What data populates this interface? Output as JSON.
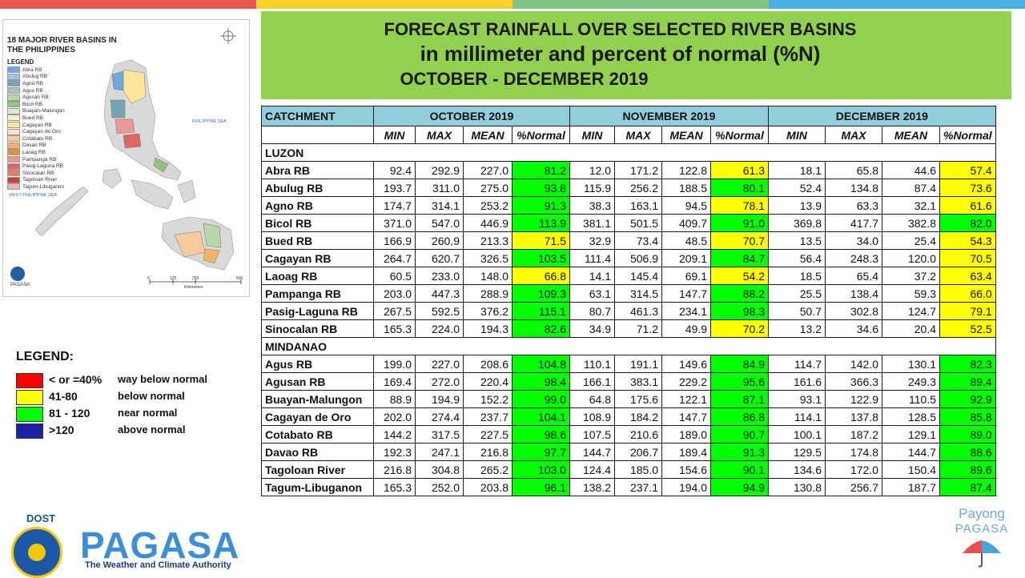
{
  "colors": {
    "top_bar": [
      "#e8574f",
      "#f5d32a",
      "#7fc380",
      "#49b2e2"
    ],
    "title_bg": "#92d050",
    "header_bg": "#92cddc",
    "red": "#ff0000",
    "yellow": "#ffff00",
    "green": "#00ff00",
    "blue": "#1f1fa6"
  },
  "title": {
    "line1": "FORECAST RAINFALL OVER SELECTED RIVER BASINS",
    "line2": "in millimeter  and percent of normal (%N)",
    "line3": "OCTOBER  - DECEMBER 2019"
  },
  "map": {
    "title": "18 MAJOR RIVER BASINS IN THE PHILIPPINES",
    "legend_title": "LEGEND",
    "legend_items": [
      {
        "label": "Abra RB",
        "color": "#6fa8dc"
      },
      {
        "label": "Abulug RB",
        "color": "#9fc5e8"
      },
      {
        "label": "Agno RB",
        "color": "#76a5af"
      },
      {
        "label": "Agus RB",
        "color": "#a2c4c9"
      },
      {
        "label": "Agusan RB",
        "color": "#b6d7a8"
      },
      {
        "label": "Bicol RB",
        "color": "#93c47d"
      },
      {
        "label": "Buayan-Malungon",
        "color": "#d9ead3"
      },
      {
        "label": "Bued RB",
        "color": "#fff2cc"
      },
      {
        "label": "Cagayan RB",
        "color": "#ffe599"
      },
      {
        "label": "Cagayan de Oro",
        "color": "#fce5cd"
      },
      {
        "label": "Cotabato RB",
        "color": "#f9cb9c"
      },
      {
        "label": "Davao RB",
        "color": "#f6b26b"
      },
      {
        "label": "Laoag RB",
        "color": "#e69138"
      },
      {
        "label": "Pampanga RB",
        "color": "#ea9999"
      },
      {
        "label": "Pasig-Laguna RB",
        "color": "#e06666"
      },
      {
        "label": "Sinocalan RB",
        "color": "#dd7e6b"
      },
      {
        "label": "Tagoloan River",
        "color": "#cc4125"
      },
      {
        "label": "Tagum-Libuganon",
        "color": "#e6b8af"
      }
    ],
    "east_sea": "PHILIPPINE SEA",
    "west_sea": "WEST PHILIPPINE SEA",
    "scale": [
      "0",
      "125",
      "250",
      "500"
    ],
    "scale_unit": "Kilometers",
    "agency": "PAGASA"
  },
  "legend": {
    "title": "LEGEND:",
    "items": [
      {
        "range": "< or =40%",
        "desc": "way below normal",
        "color": "#ff0000"
      },
      {
        "range": "41-80",
        "desc": "below normal",
        "color": "#ffff00"
      },
      {
        "range": "81 - 120",
        "desc": "near normal",
        "color": "#00ff00"
      },
      {
        "range": ">120",
        "desc": "above normal",
        "color": "#1f1fa6"
      }
    ]
  },
  "table": {
    "catchment_label": "CATCHMENT",
    "months": [
      "OCTOBER 2019",
      "NOVEMBER 2019",
      "DECEMBER 2019"
    ],
    "subheaders": [
      "MIN",
      "MAX",
      "MEAN",
      "%Normal"
    ],
    "regions": [
      {
        "name": "LUZON",
        "rows": [
          {
            "name": "Abra RB",
            "values": [
              "92.4",
              "292.9",
              "227.0",
              "81.2",
              "12.0",
              "171.2",
              "122.8",
              "61.3",
              "18.1",
              "65.8",
              "44.6",
              "57.4"
            ],
            "cls": [
              "g",
              "y",
              "y"
            ]
          },
          {
            "name": "Abulug RB",
            "values": [
              "193.7",
              "311.0",
              "275.0",
              "93.8",
              "115.9",
              "256.2",
              "188.5",
              "80.1",
              "52.4",
              "134.8",
              "87.4",
              "73.6"
            ],
            "cls": [
              "g",
              "g",
              "y"
            ]
          },
          {
            "name": "Agno RB",
            "values": [
              "174.7",
              "314.1",
              "253.2",
              "91.3",
              "38.3",
              "163.1",
              "94.5",
              "78.1",
              "13.9",
              "63.3",
              "32.1",
              "61.6"
            ],
            "cls": [
              "g",
              "y",
              "y"
            ]
          },
          {
            "name": "Bicol RB",
            "values": [
              "371.0",
              "547.0",
              "446.9",
              "113.9",
              "381.1",
              "501.5",
              "409.7",
              "91.0",
              "369.8",
              "417.7",
              "382.8",
              "82.0"
            ],
            "cls": [
              "g",
              "g",
              "g"
            ]
          },
          {
            "name": "Bued RB",
            "values": [
              "166.9",
              "260.9",
              "213.3",
              "71.5",
              "32.9",
              "73.4",
              "48.5",
              "70.7",
              "13.5",
              "34.0",
              "25.4",
              "54.3"
            ],
            "cls": [
              "y",
              "y",
              "y"
            ]
          },
          {
            "name": "Cagayan RB",
            "values": [
              "264.7",
              "620.7",
              "326.5",
              "103.5",
              "111.4",
              "506.9",
              "209.1",
              "84.7",
              "56.4",
              "248.3",
              "120.0",
              "70.5"
            ],
            "cls": [
              "g",
              "g",
              "y"
            ]
          },
          {
            "name": "Laoag RB",
            "values": [
              "60.5",
              "233.0",
              "148.0",
              "66.8",
              "14.1",
              "145.4",
              "69.1",
              "54.2",
              "18.5",
              "65.4",
              "37.2",
              "63.4"
            ],
            "cls": [
              "y",
              "y",
              "y"
            ]
          },
          {
            "name": "Pampanga RB",
            "values": [
              "203.0",
              "447.3",
              "288.9",
              "109.3",
              "63.1",
              "314.5",
              "147.7",
              "88.2",
              "25.5",
              "138.4",
              "59.3",
              "66.0"
            ],
            "cls": [
              "g",
              "g",
              "y"
            ]
          },
          {
            "name": "Pasig-Laguna RB",
            "values": [
              "267.5",
              "592.5",
              "376.2",
              "115.1",
              "80.7",
              "461.3",
              "234.1",
              "98.3",
              "50.7",
              "302.8",
              "124.7",
              "79.1"
            ],
            "cls": [
              "g",
              "g",
              "y"
            ]
          },
          {
            "name": "Sinocalan RB",
            "values": [
              "165.3",
              "224.0",
              "194.3",
              "82.6",
              "34.9",
              "71.2",
              "49.9",
              "70.2",
              "13.2",
              "34.6",
              "20.4",
              "52.5"
            ],
            "cls": [
              "g",
              "y",
              "y"
            ]
          }
        ]
      },
      {
        "name": "MINDANAO",
        "rows": [
          {
            "name": "Agus RB",
            "values": [
              "199.0",
              "227.0",
              "208.6",
              "104.8",
              "110.1",
              "191.1",
              "149.6",
              "84.9",
              "114.7",
              "142.0",
              "130.1",
              "82.3"
            ],
            "cls": [
              "g",
              "g",
              "g"
            ]
          },
          {
            "name": "Agusan RB",
            "values": [
              "169.4",
              "272.0",
              "220.4",
              "98.4",
              "166.1",
              "383.1",
              "229.2",
              "95.6",
              "161.6",
              "366.3",
              "249.3",
              "89.4"
            ],
            "cls": [
              "g",
              "g",
              "g"
            ]
          },
          {
            "name": "Buayan-Malungon",
            "values": [
              "88.9",
              "194.9",
              "152.2",
              "99.0",
              "64.8",
              "175.6",
              "122.1",
              "87.1",
              "93.1",
              "122.9",
              "110.5",
              "92.9"
            ],
            "cls": [
              "g",
              "g",
              "g"
            ]
          },
          {
            "name": "Cagayan de Oro",
            "values": [
              "202.0",
              "274.4",
              "237.7",
              "104.1",
              "108.9",
              "184.2",
              "147.7",
              "86.8",
              "114.1",
              "137.8",
              "128.5",
              "85.8"
            ],
            "cls": [
              "g",
              "g",
              "g"
            ]
          },
          {
            "name": "Cotabato RB",
            "values": [
              "144.2",
              "317.5",
              "227.5",
              "98.6",
              "107.5",
              "210.6",
              "189.0",
              "90.7",
              "100.1",
              "187.2",
              "129.1",
              "89.0"
            ],
            "cls": [
              "g",
              "g",
              "g"
            ]
          },
          {
            "name": "Davao RB",
            "values": [
              "192.3",
              "247.1",
              "216.8",
              "97.7",
              "144.7",
              "206.7",
              "189.4",
              "91.3",
              "129.5",
              "174.8",
              "144.7",
              "88.6"
            ],
            "cls": [
              "g",
              "g",
              "g"
            ]
          },
          {
            "name": "Tagoloan River",
            "values": [
              "216.8",
              "304.8",
              "265.2",
              "103.0",
              "124.4",
              "185.0",
              "154.6",
              "90.1",
              "134.6",
              "172.0",
              "150.4",
              "89.6"
            ],
            "cls": [
              "g",
              "g",
              "g"
            ]
          },
          {
            "name": "Tagum-Libuganon",
            "values": [
              "165.3",
              "252.0",
              "203.8",
              "96.1",
              "138.2",
              "237.1",
              "194.0",
              "94.9",
              "130.8",
              "256.7",
              "187.7",
              "87.4"
            ],
            "cls": [
              "g",
              "g",
              "g"
            ]
          }
        ]
      }
    ]
  },
  "logo": {
    "dost": "DOST",
    "name": "PAGASA",
    "tagline": "The Weather and Climate Authority"
  },
  "payong": {
    "line1": "Payong",
    "line2": "PAGASA"
  }
}
